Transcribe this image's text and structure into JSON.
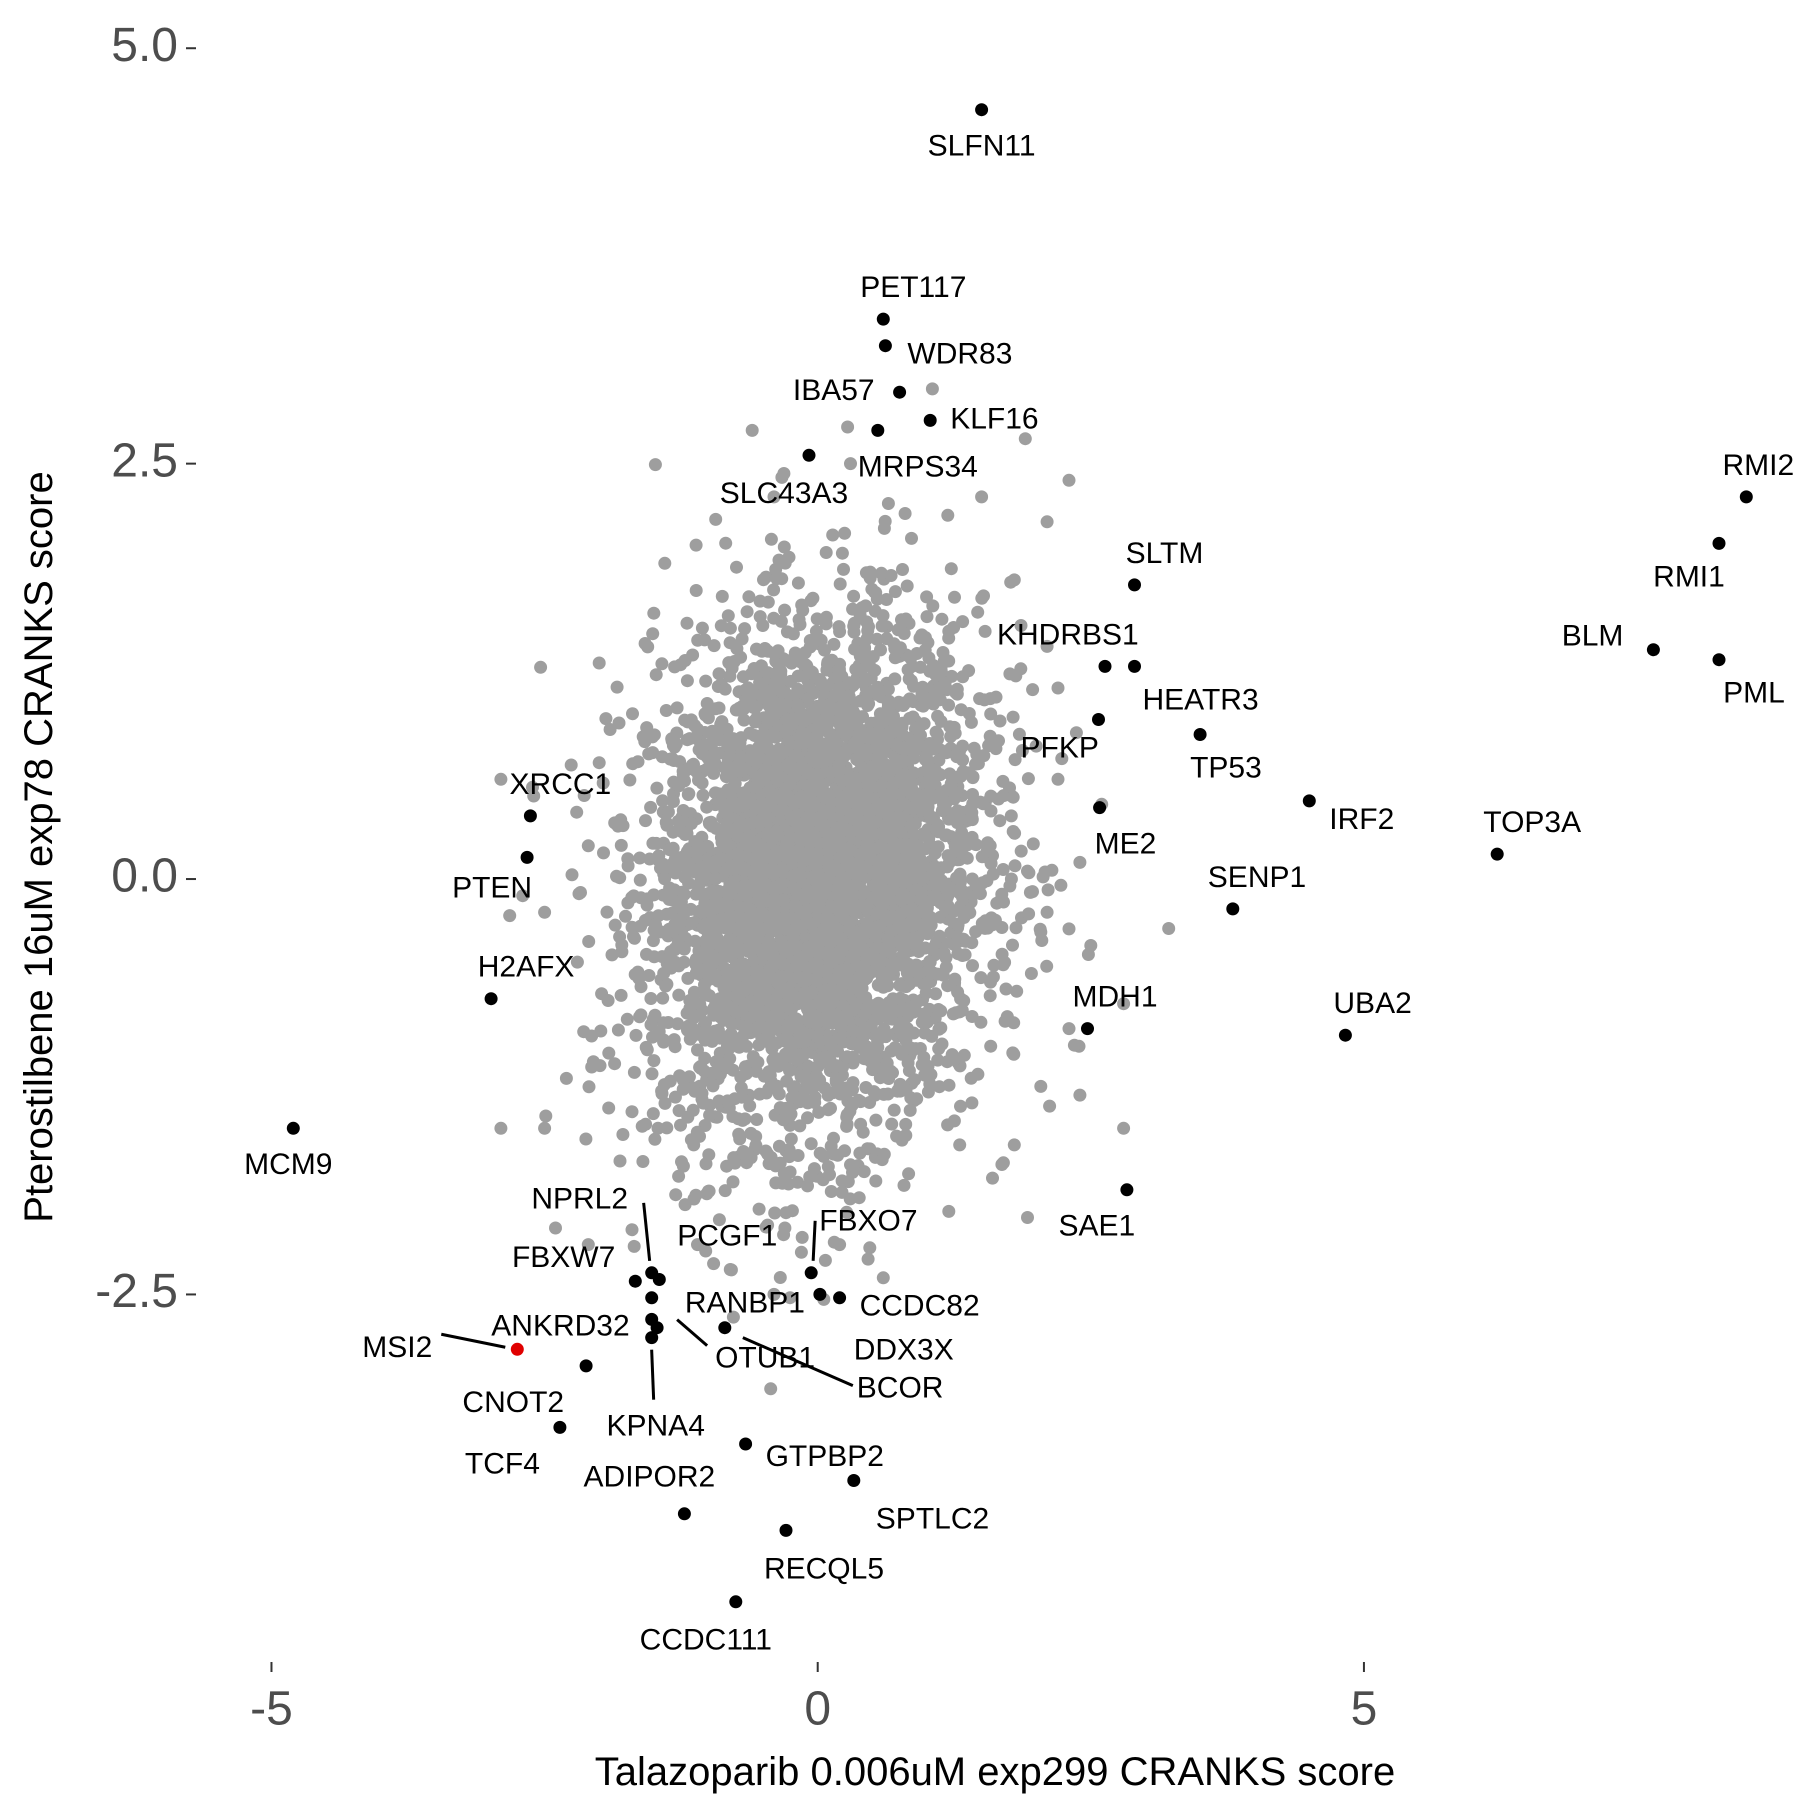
{
  "chart_data": {
    "type": "scatter",
    "xlabel": "Talazoparib 0.006uM exp299 CRANKS score",
    "ylabel": "Pterostilbene 16uM exp78 CRANKS score",
    "xlim": [
      -5.7,
      8.9
    ],
    "ylim": [
      -4.7,
      5.2
    ],
    "x_ticks": [
      {
        "value": -5,
        "label": "-5"
      },
      {
        "value": 0,
        "label": "0"
      },
      {
        "value": 5,
        "label": "5"
      }
    ],
    "y_ticks": [
      {
        "value": 5,
        "label": "5.0"
      },
      {
        "value": 2.5,
        "label": "2.5"
      },
      {
        "value": 0,
        "label": "0.0"
      },
      {
        "value": -2.5,
        "label": "-2.5"
      }
    ],
    "grid": false,
    "legend": "none",
    "colors": {
      "background_points": "#9e9e9e",
      "highlight_points": "#000000",
      "special_point": "#e00000"
    },
    "background_cloud": {
      "center": [
        0.0,
        0.0
      ],
      "sd": [
        0.75,
        0.75
      ],
      "n_points": 4500,
      "outliers": [
        [
          -2.9,
          0.6
        ],
        [
          -2.6,
          0.5
        ],
        [
          -2.7,
          -0.1
        ],
        [
          -2.5,
          -0.2
        ],
        [
          -2.2,
          -0.5
        ],
        [
          -2.9,
          -1.5
        ],
        [
          -2.5,
          -1.5
        ],
        [
          -2.3,
          -1.2
        ],
        [
          -2.4,
          -2.1
        ],
        [
          -2.1,
          -2.2
        ],
        [
          -2.0,
          1.3
        ],
        [
          -2.0,
          0.7
        ],
        [
          -2.1,
          0.2
        ],
        [
          -1.8,
          -0.7
        ],
        [
          -1.5,
          1.6
        ],
        [
          -1.4,
          1.9
        ],
        [
          -0.6,
          2.7
        ],
        [
          -0.4,
          2.3
        ],
        [
          0.3,
          2.5
        ],
        [
          0.8,
          2.2
        ],
        [
          1.05,
          2.95
        ],
        [
          1.5,
          2.3
        ],
        [
          1.9,
          2.65
        ],
        [
          2.3,
          2.4
        ],
        [
          2.1,
          2.15
        ],
        [
          1.8,
          1.8
        ],
        [
          2.1,
          1.4
        ],
        [
          2.2,
          1.15
        ],
        [
          2.0,
          0.8
        ],
        [
          2.2,
          0.6
        ],
        [
          2.4,
          0.1
        ],
        [
          2.3,
          -0.3
        ],
        [
          2.5,
          -0.4
        ],
        [
          2.3,
          -0.9
        ],
        [
          2.35,
          -1.0
        ],
        [
          2.8,
          -0.75
        ],
        [
          2.8,
          -1.5
        ],
        [
          2.4,
          -1.3
        ],
        [
          1.8,
          -1.6
        ],
        [
          1.6,
          -1.8
        ],
        [
          1.2,
          -2.0
        ],
        [
          0.6,
          -2.4
        ],
        [
          0.2,
          -2.2
        ],
        [
          -0.4,
          -2.5
        ],
        [
          -0.8,
          -2.35
        ],
        [
          -1.1,
          -2.2
        ],
        [
          -1.3,
          -1.9
        ],
        [
          -1.6,
          -1.7
        ],
        [
          -1.7,
          -1.4
        ],
        [
          1.3,
          -1.6
        ],
        [
          -0.9,
          -2.05
        ],
        [
          -0.3,
          -2.1
        ],
        [
          2.6,
          0.45
        ],
        [
          2.1,
          -0.2
        ],
        [
          -1.9,
          0.9
        ]
      ]
    },
    "highlighted": [
      {
        "gene": "SLFN11",
        "x": 1.5,
        "y": 4.63
      },
      {
        "gene": "PET117",
        "x": 0.6,
        "y": 3.37
      },
      {
        "gene": "WDR83",
        "x": 0.62,
        "y": 3.21
      },
      {
        "gene": "IBA57",
        "x": 0.75,
        "y": 2.93
      },
      {
        "gene": "KLF16",
        "x": 1.03,
        "y": 2.76
      },
      {
        "gene": "MRPS34",
        "x": 0.55,
        "y": 2.7
      },
      {
        "gene": "SLC43A3",
        "x": -0.08,
        "y": 2.55
      },
      {
        "gene": "RMI2",
        "x": 8.5,
        "y": 2.3
      },
      {
        "gene": "RMI1",
        "x": 8.25,
        "y": 2.02
      },
      {
        "gene": "SLTM",
        "x": 2.9,
        "y": 1.77
      },
      {
        "gene": "BLM",
        "x": 7.65,
        "y": 1.38
      },
      {
        "gene": "PML",
        "x": 8.25,
        "y": 1.32
      },
      {
        "gene": "KHDRBS1",
        "x": 2.63,
        "y": 1.28
      },
      {
        "gene": "HEATR3",
        "x": 2.9,
        "y": 1.28
      },
      {
        "gene": "PFKP",
        "x": 2.57,
        "y": 0.96
      },
      {
        "gene": "TP53",
        "x": 3.5,
        "y": 0.87
      },
      {
        "gene": "IRF2",
        "x": 4.5,
        "y": 0.47
      },
      {
        "gene": "ME2",
        "x": 2.58,
        "y": 0.43
      },
      {
        "gene": "TOP3A",
        "x": 6.22,
        "y": 0.15
      },
      {
        "gene": "XRCC1",
        "x": -2.63,
        "y": 0.38
      },
      {
        "gene": "PTEN",
        "x": -2.66,
        "y": 0.13
      },
      {
        "gene": "SENP1",
        "x": 3.8,
        "y": -0.18
      },
      {
        "gene": "H2AFX",
        "x": -2.99,
        "y": -0.72
      },
      {
        "gene": "MDH1",
        "x": 2.47,
        "y": -0.9
      },
      {
        "gene": "UBA2",
        "x": 4.83,
        "y": -0.94
      },
      {
        "gene": "MCM9",
        "x": -4.8,
        "y": -1.5
      },
      {
        "gene": "SAE1",
        "x": 2.83,
        "y": -1.87
      },
      {
        "gene": "NPRL2",
        "x": -1.52,
        "y": -2.37
      },
      {
        "gene": "PCGF1",
        "x": -1.45,
        "y": -2.41
      },
      {
        "gene": "FBXO7",
        "x": -0.06,
        "y": -2.37
      },
      {
        "gene": "FBXW7",
        "x": -1.67,
        "y": -2.42
      },
      {
        "gene": "CCDC82",
        "x": 0.2,
        "y": -2.52
      },
      {
        "gene": "RANBP1",
        "x": 0.02,
        "y": -2.5
      },
      {
        "gene": "ANKRD32",
        "x": -1.52,
        "y": -2.52
      },
      {
        "gene": "DDX3X",
        "x": -1.52,
        "y": -2.65
      },
      {
        "gene": "OTUB1",
        "x": -1.47,
        "y": -2.7
      },
      {
        "gene": "BCOR",
        "x": -0.85,
        "y": -2.7
      },
      {
        "gene": "KPNA4",
        "x": -1.52,
        "y": -2.76
      },
      {
        "gene": "MSI2",
        "x": -2.75,
        "y": -2.83,
        "special": true
      },
      {
        "gene": "CNOT2",
        "x": -2.12,
        "y": -2.93
      },
      {
        "gene": "TCF4",
        "x": -2.36,
        "y": -3.3
      },
      {
        "gene": "GTPBP2",
        "x": -0.66,
        "y": -3.4
      },
      {
        "gene": "SPTLC2",
        "x": 0.33,
        "y": -3.62
      },
      {
        "gene": "ADIPOR2",
        "x": -1.22,
        "y": -3.82
      },
      {
        "gene": "RECQL5",
        "x": -0.29,
        "y": -3.92
      },
      {
        "gene": "CCDC111",
        "x": -0.75,
        "y": -4.35
      }
    ]
  }
}
